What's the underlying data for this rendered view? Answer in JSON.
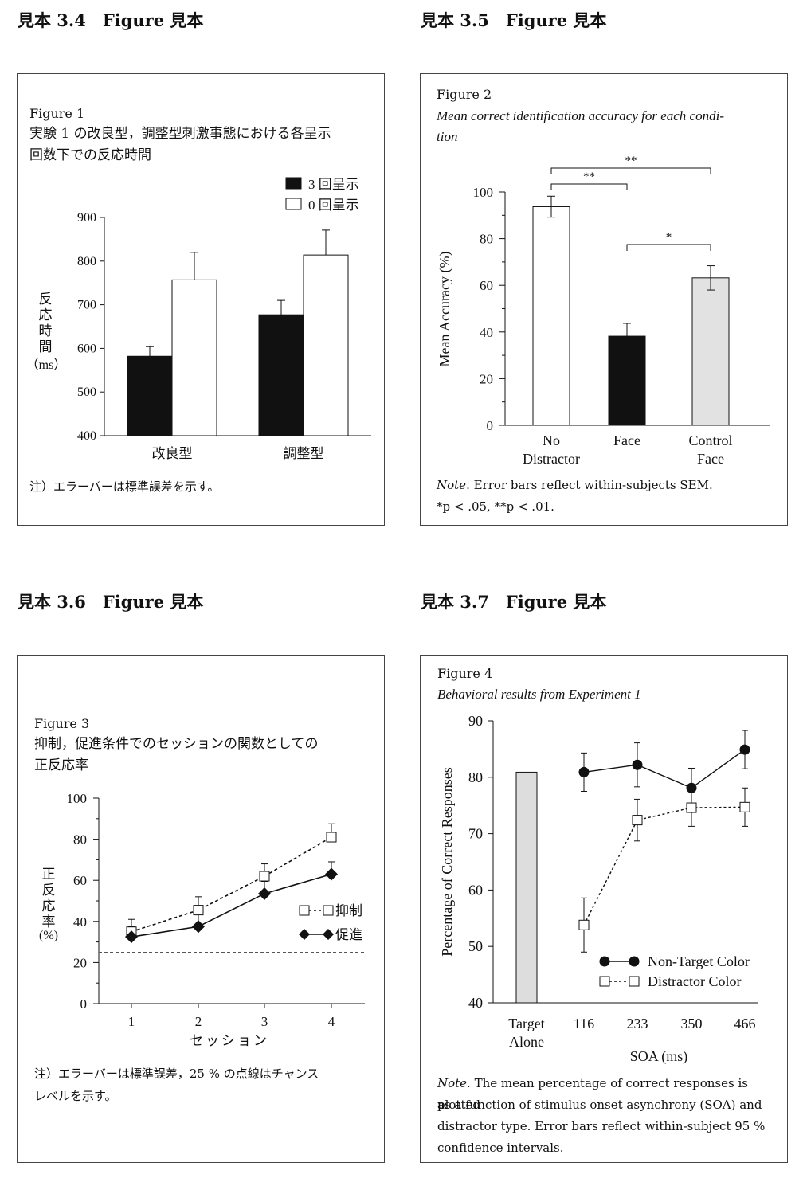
{
  "sections": [
    {
      "label": "見本 3.4　Figure 見本"
    },
    {
      "label": "見本 3.5　Figure 見本"
    },
    {
      "label": "見本 3.6　Figure 見本"
    },
    {
      "label": "見本 3.7　Figure 見本"
    }
  ],
  "chart_data": [
    {
      "type": "bar",
      "figure_label": "Figure 1",
      "title_lines": [
        "実験 1 の改良型，調整型刺激事態における各呈示",
        "回数下での反応時間"
      ],
      "categories": [
        "改良型",
        "調整型"
      ],
      "series": [
        {
          "name": "3 回呈示",
          "values": [
            582,
            677
          ],
          "errors": [
            22,
            33
          ],
          "color": "#111111"
        },
        {
          "name": "0 回呈示",
          "values": [
            757,
            814
          ],
          "errors": [
            63,
            57
          ],
          "color": "#ffffff"
        }
      ],
      "ylabel_chars": [
        "反",
        "応",
        "時",
        "間"
      ],
      "ylabel_unit": "（ms）",
      "ylim": [
        400,
        900
      ],
      "yticks": [
        "400",
        "500",
        "600",
        "700",
        "800",
        "900"
      ],
      "legend": "top-right",
      "note": "注）エラーバーは標準誤差を示す。"
    },
    {
      "type": "bar",
      "figure_label": "Figure 2",
      "title_lines": [
        "Mean correct identification accuracy for each condi-",
        "tion"
      ],
      "categories": [
        [
          "No",
          "Distractor"
        ],
        [
          "Face"
        ],
        [
          "Control",
          "Face"
        ]
      ],
      "values": [
        93.7,
        38.2,
        63.2
      ],
      "errors": [
        4.5,
        5.5,
        5.2
      ],
      "colors": [
        "#ffffff",
        "#111111",
        "#e2e2e2"
      ],
      "ylabel": "Mean Accuracy (%)",
      "ylim": [
        0,
        100
      ],
      "yticks": [
        "0",
        "20",
        "40",
        "60",
        "80",
        "100"
      ],
      "significance": [
        {
          "from": 0,
          "to": 2,
          "label": "**"
        },
        {
          "from": 0,
          "to": 1,
          "label": "**"
        },
        {
          "from": 1,
          "to": 2,
          "label": "*"
        }
      ],
      "note_italic": "Note",
      "note_text": ". Error bars reflect within-subjects SEM.",
      "note_line2": "*p < .05, **p < .01."
    },
    {
      "type": "line",
      "figure_label": "Figure 3",
      "title_lines": [
        "抑制，促進条件でのセッションの関数としての",
        "正反応率"
      ],
      "x": [
        "1",
        "2",
        "3",
        "4"
      ],
      "series": [
        {
          "name": "抑制",
          "values": [
            35,
            45.5,
            62,
            81
          ],
          "errors": [
            6,
            6.5,
            6,
            6.5
          ],
          "marker": "open-square",
          "dash": "dashed"
        },
        {
          "name": "促進",
          "values": [
            32.5,
            37.5,
            53.5,
            63
          ],
          "errors": [
            5,
            6,
            6,
            6
          ],
          "marker": "filled-diamond",
          "dash": "solid"
        }
      ],
      "reference_line": 25,
      "xlabel": "セッション",
      "ylabel_chars": [
        "正",
        "反",
        "応",
        "率"
      ],
      "ylabel_unit": "(%)",
      "ylim": [
        0,
        100
      ],
      "yticks": [
        "0",
        "20",
        "40",
        "60",
        "80",
        "100"
      ],
      "legend": "right",
      "note_lines": [
        "注）エラーバーは標準誤差，25 % の点線はチャンス",
        "レベルを示す。"
      ]
    },
    {
      "type": "line",
      "figure_label": "Figure 4",
      "title_lines": [
        "Behavioral results from Experiment 1"
      ],
      "bar": {
        "label": [
          "Target",
          "Alone"
        ],
        "value": 80.9,
        "color": "#dddddd"
      },
      "x": [
        "116",
        "233",
        "350",
        "466"
      ],
      "series": [
        {
          "name": "Non-Target Color",
          "values": [
            80.9,
            82.2,
            78.1,
            84.9
          ],
          "errors": [
            3.4,
            3.9,
            3.5,
            3.4
          ],
          "marker": "filled-circle",
          "dash": "solid"
        },
        {
          "name": "Distractor Color",
          "values": [
            53.8,
            72.4,
            74.6,
            74.7
          ],
          "errors": [
            4.8,
            3.7,
            3.3,
            3.4
          ],
          "marker": "open-square",
          "dash": "dashed"
        }
      ],
      "xlabel": "SOA (ms)",
      "ylabel": "Percentage of Correct Responses",
      "ylim": [
        40,
        90
      ],
      "yticks": [
        "40",
        "50",
        "60",
        "70",
        "80",
        "90"
      ],
      "legend": "bottom-right",
      "note_italic": "Note.",
      "note_lines": [
        " The mean percentage of correct responses is plotted",
        "as a function of stimulus onset asynchrony (SOA) and",
        "distractor type. Error bars reflect within-subject 95 %",
        "confidence intervals."
      ]
    }
  ]
}
